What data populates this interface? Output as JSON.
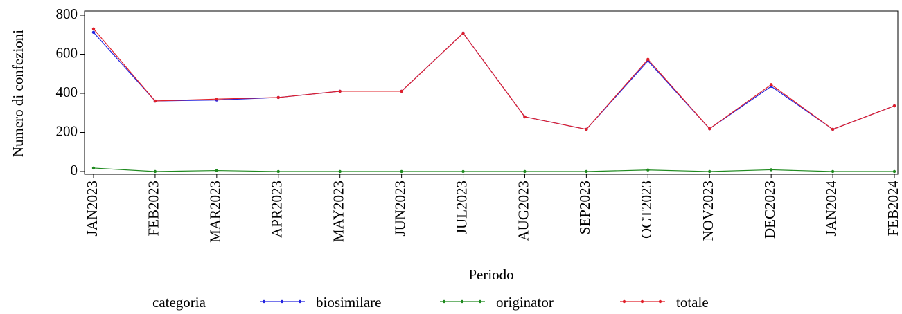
{
  "chart_data": {
    "type": "line",
    "x_label": "Periodo",
    "y_label": "Numero di confezioni",
    "legend_title": "categoria",
    "categories": [
      "JAN2023",
      "FEB2023",
      "MAR2023",
      "APR2023",
      "MAY2023",
      "JUN2023",
      "JUL2023",
      "AUG2023",
      "SEP2023",
      "OCT2023",
      "NOV2023",
      "DEC2023",
      "JAN2024",
      "FEB2024"
    ],
    "series": [
      {
        "name": "biosimilare",
        "color": "#2424e0",
        "values": [
          712,
          361,
          366,
          379,
          411,
          411,
          708,
          280,
          216,
          566,
          219,
          436,
          216,
          336
        ]
      },
      {
        "name": "originator",
        "color": "#1f8a1f",
        "values": [
          18,
          0,
          5,
          0,
          0,
          0,
          0,
          0,
          0,
          8,
          0,
          9,
          0,
          0
        ]
      },
      {
        "name": "totale",
        "color": "#e0202a",
        "values": [
          730,
          361,
          371,
          379,
          411,
          411,
          708,
          280,
          216,
          574,
          219,
          445,
          216,
          336
        ]
      }
    ],
    "ylim": [
      0,
      800
    ],
    "yticks": [
      0,
      200,
      400,
      600,
      800
    ],
    "legend": "bottom"
  }
}
